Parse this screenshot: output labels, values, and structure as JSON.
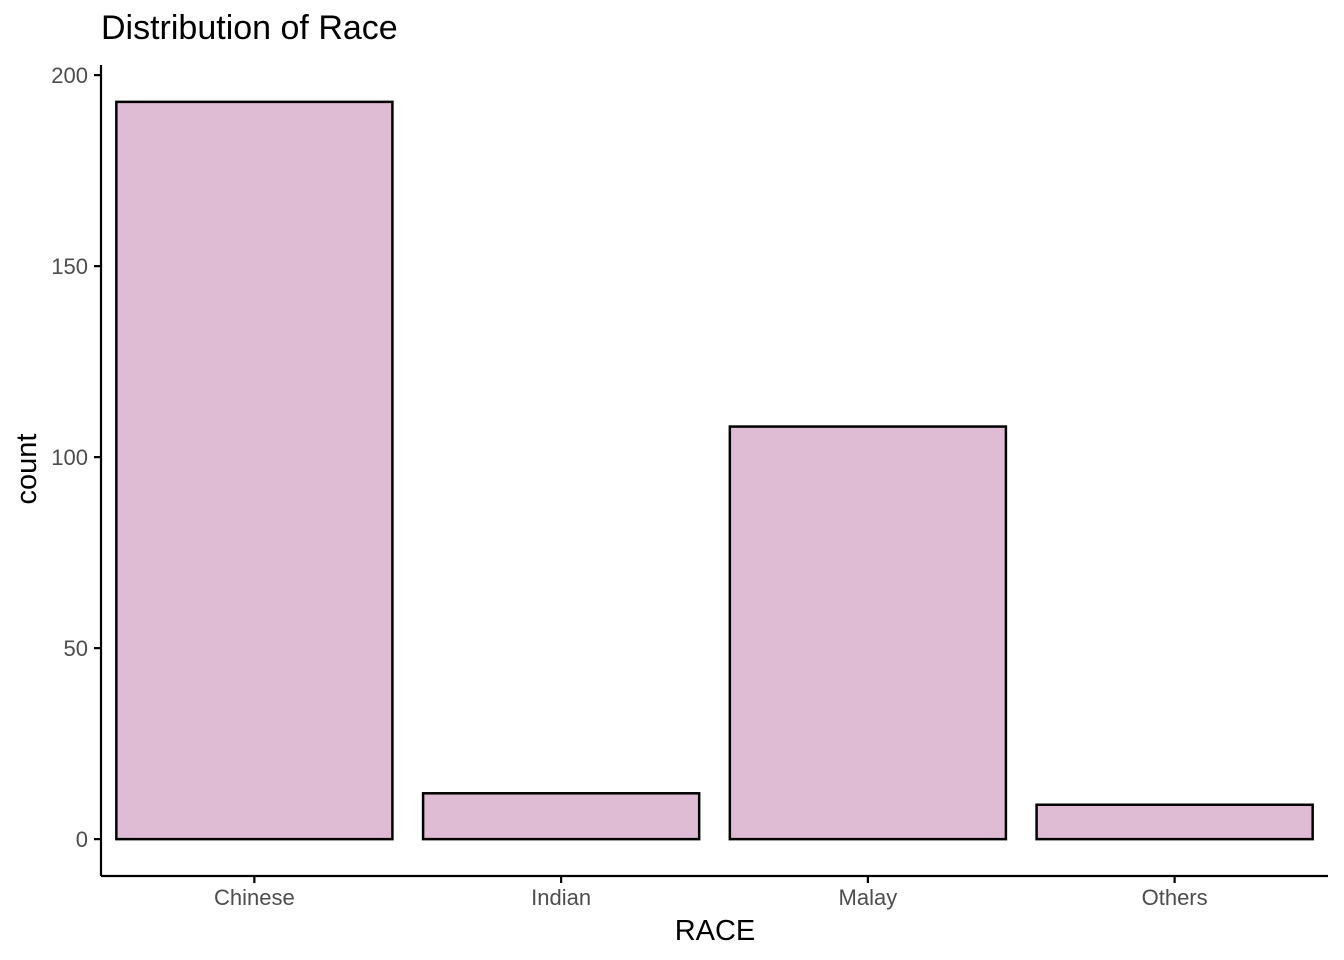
{
  "chart_data": {
    "type": "bar",
    "title": "Distribution of Race",
    "xlabel": "RACE",
    "ylabel": "count",
    "categories": [
      "Chinese",
      "Indian",
      "Malay",
      "Others"
    ],
    "values": [
      193,
      12,
      108,
      9
    ],
    "ylim": [
      -9.65,
      202.65
    ],
    "yticks": [
      0,
      50,
      100,
      150,
      200
    ],
    "grid": false,
    "legend": "none",
    "colors": {
      "bar_fill": "#e0bbd4",
      "bar_outline": "#000000",
      "axis": "#000000",
      "tick_label": "#4d4d4d"
    }
  }
}
